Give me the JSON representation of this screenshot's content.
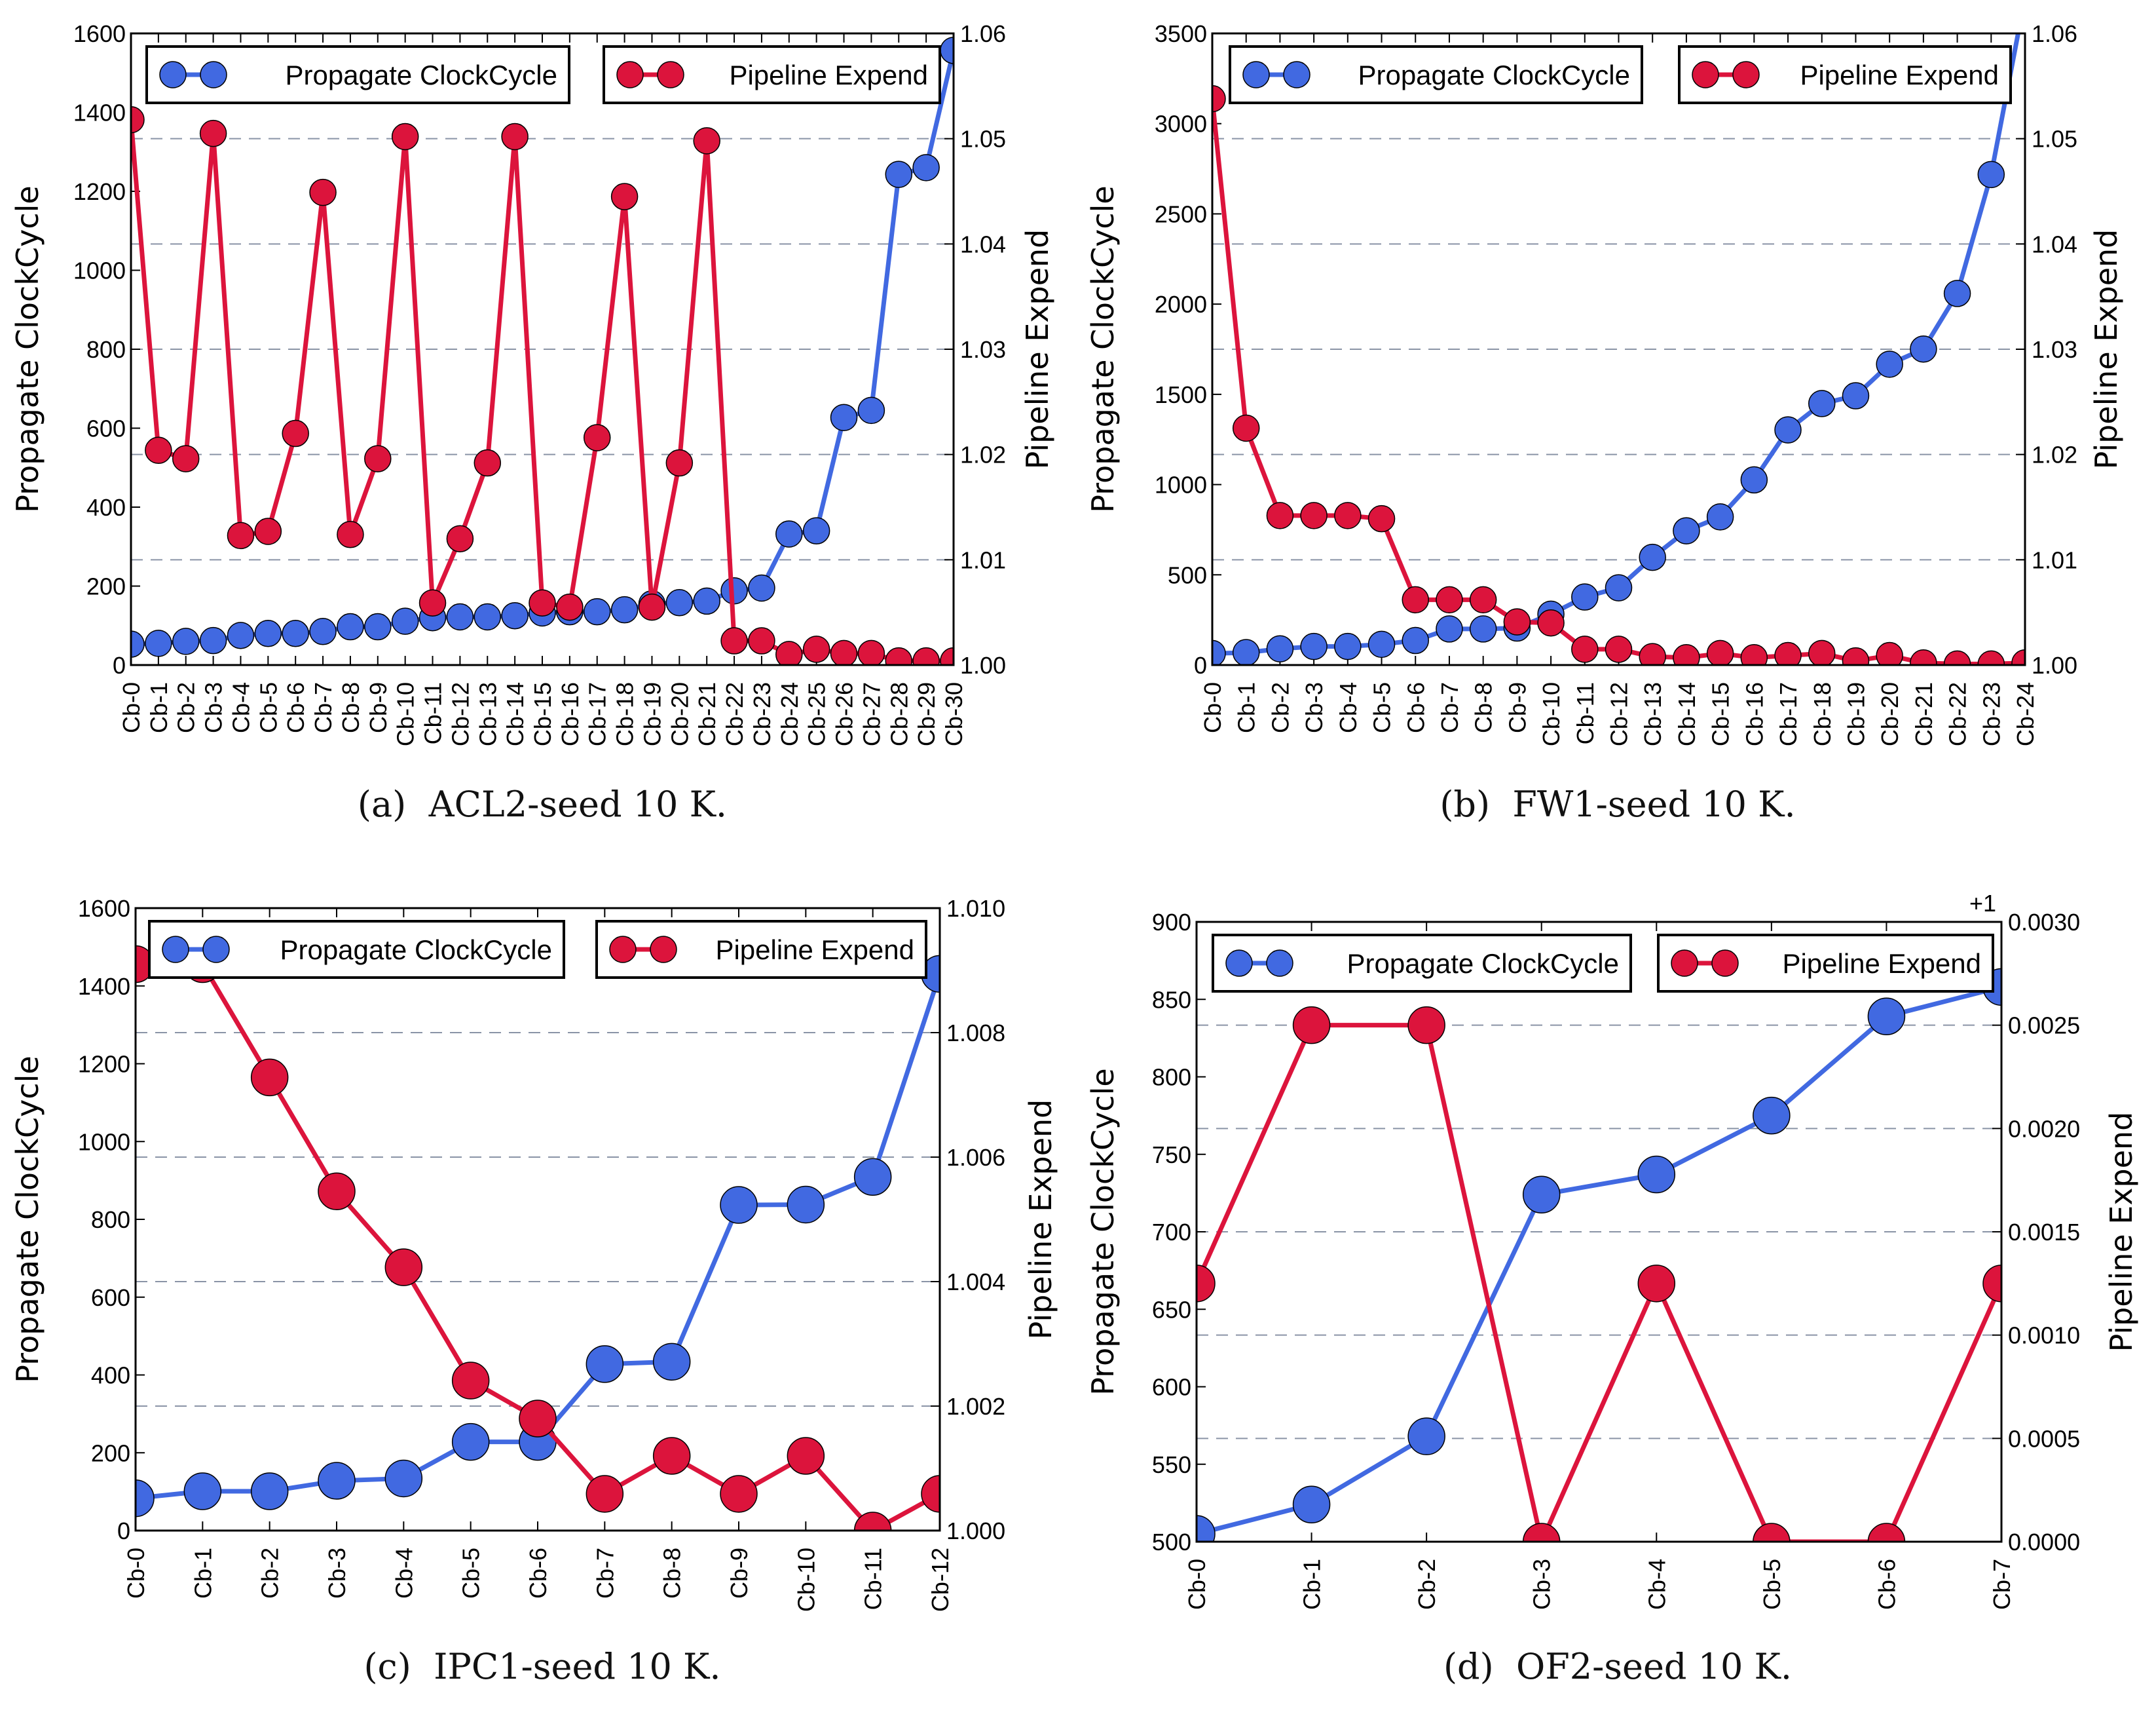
{
  "colors": {
    "propagate": "#4169E1",
    "pipeline": "#DC143C",
    "grid": "#8a94a6"
  },
  "legend": {
    "propagate": "Propagate ClockCycle",
    "pipeline": "Pipeline Expend"
  },
  "chart_data": [
    {
      "type": "line",
      "caption": "(a)  ACL2-seed 10 K.",
      "ylabel": "Propagate ClockCycle",
      "y2label": "Pipeline Expend",
      "categories": [
        "Cb-0",
        "Cb-1",
        "Cb-2",
        "Cb-3",
        "Cb-4",
        "Cb-5",
        "Cb-6",
        "Cb-7",
        "Cb-8",
        "Cb-9",
        "Cb-10",
        "Cb-11",
        "Cb-12",
        "Cb-13",
        "Cb-14",
        "Cb-15",
        "Cb-16",
        "Cb-17",
        "Cb-18",
        "Cb-19",
        "Cb-20",
        "Cb-21",
        "Cb-22",
        "Cb-23",
        "Cb-24",
        "Cb-25",
        "Cb-26",
        "Cb-27",
        "Cb-28",
        "Cb-29",
        "Cb-30"
      ],
      "ylim": [
        0,
        1600
      ],
      "yticks": [
        "0",
        "200",
        "400",
        "600",
        "800",
        "1000",
        "1200",
        "1400",
        "1600"
      ],
      "y2lim": [
        1.0,
        1.06
      ],
      "y2ticks": [
        "1.00",
        "1.01",
        "1.02",
        "1.03",
        "1.04",
        "1.05",
        "1.06"
      ],
      "y2_offset_label": "",
      "series": [
        {
          "name": "Propagate ClockCycle",
          "axis": "left",
          "values": [
            53,
            55,
            60,
            62,
            75,
            80,
            80,
            85,
            97,
            97,
            111,
            120,
            122,
            122,
            125,
            132,
            135,
            135,
            140,
            155,
            158,
            162,
            188,
            195,
            332,
            340,
            627,
            645,
            1243,
            1260,
            1557
          ]
        },
        {
          "name": "Pipeline Expend",
          "axis": "right",
          "values": [
            1.0518,
            1.0204,
            1.0196,
            1.0505,
            1.0123,
            1.0127,
            1.022,
            1.0449,
            1.0124,
            1.0196,
            1.0502,
            1.0059,
            1.012,
            1.0192,
            1.0502,
            1.0059,
            1.0055,
            1.0216,
            1.0445,
            1.0055,
            1.0192,
            1.0498,
            1.0023,
            1.0023,
            1.001,
            1.0015,
            1.0011,
            1.0011,
            1.0004,
            1.0004,
            1.0004
          ]
        }
      ],
      "grid": "horizontal dashed at right-axis ticks",
      "legend_placement": "top"
    },
    {
      "type": "line",
      "caption": "(b)  FW1-seed 10 K.",
      "ylabel": "Propagate ClockCycle",
      "y2label": "Pipeline Expend",
      "categories": [
        "Cb-0",
        "Cb-1",
        "Cb-2",
        "Cb-3",
        "Cb-4",
        "Cb-5",
        "Cb-6",
        "Cb-7",
        "Cb-8",
        "Cb-9",
        "Cb-10",
        "Cb-11",
        "Cb-12",
        "Cb-13",
        "Cb-14",
        "Cb-15",
        "Cb-16",
        "Cb-17",
        "Cb-18",
        "Cb-19",
        "Cb-20",
        "Cb-21",
        "Cb-22",
        "Cb-23",
        "Cb-24"
      ],
      "ylim": [
        0,
        3500
      ],
      "yticks": [
        "0",
        "500",
        "1000",
        "1500",
        "2000",
        "2500",
        "3000",
        "3500"
      ],
      "y2lim": [
        1.0,
        1.06
      ],
      "y2ticks": [
        "1.00",
        "1.01",
        "1.02",
        "1.03",
        "1.04",
        "1.05",
        "1.06"
      ],
      "y2_offset_label": "",
      "series": [
        {
          "name": "Propagate ClockCycle",
          "axis": "left",
          "values": [
            64,
            69,
            90,
            103,
            103,
            115,
            136,
            200,
            200,
            205,
            282,
            377,
            428,
            597,
            744,
            821,
            1026,
            1303,
            1449,
            1492,
            1667,
            1751,
            2059,
            2718,
            3700
          ]
        },
        {
          "name": "Pipeline Expend",
          "axis": "right",
          "values": [
            1.0538,
            1.0225,
            1.0142,
            1.0142,
            1.0142,
            1.0139,
            1.0062,
            1.0062,
            1.0062,
            1.0041,
            1.004,
            1.0015,
            1.0015,
            1.0008,
            1.0007,
            1.0011,
            1.0007,
            1.0009,
            1.0011,
            1.0004,
            1.0009,
            1.0002,
            1.0001,
            1.0001,
            1.0002
          ]
        }
      ],
      "grid": "horizontal dashed at right-axis ticks",
      "legend_placement": "top"
    },
    {
      "type": "line",
      "caption": "(c)  IPC1-seed 10 K.",
      "ylabel": "Propagate ClockCycle",
      "y2label": "Pipeline Expend",
      "categories": [
        "Cb-0",
        "Cb-1",
        "Cb-2",
        "Cb-3",
        "Cb-4",
        "Cb-5",
        "Cb-6",
        "Cb-7",
        "Cb-8",
        "Cb-9",
        "Cb-10",
        "Cb-11",
        "Cb-12"
      ],
      "ylim": [
        0,
        1600
      ],
      "yticks": [
        "0",
        "200",
        "400",
        "600",
        "800",
        "1000",
        "1200",
        "1400",
        "1600"
      ],
      "y2lim": [
        1.0,
        1.01
      ],
      "y2ticks": [
        "1.000",
        "1.002",
        "1.004",
        "1.006",
        "1.008",
        "1.010"
      ],
      "y2_offset_label": "",
      "series": [
        {
          "name": "Propagate ClockCycle",
          "axis": "left",
          "values": [
            83,
            101,
            101,
            128,
            134,
            228,
            228,
            428,
            434,
            837,
            838,
            909,
            1431
          ]
        },
        {
          "name": "Pipeline Expend",
          "axis": "right",
          "values": [
            1.0091,
            1.0091,
            1.00728,
            1.00545,
            1.00423,
            1.00241,
            1.0018,
            1.00059,
            1.0012,
            1.00059,
            1.0012,
            1.0,
            1.00059
          ]
        }
      ],
      "grid": "horizontal dashed at right-axis ticks",
      "legend_placement": "top"
    },
    {
      "type": "line",
      "caption": "(d)  OF2-seed 10 K.",
      "ylabel": "Propagate ClockCycle",
      "y2label": "Pipeline Expend",
      "categories": [
        "Cb-0",
        "Cb-1",
        "Cb-2",
        "Cb-3",
        "Cb-4",
        "Cb-5",
        "Cb-6",
        "Cb-7"
      ],
      "ylim": [
        500,
        900
      ],
      "yticks": [
        "500",
        "550",
        "600",
        "650",
        "700",
        "750",
        "800",
        "850",
        "900"
      ],
      "y2lim": [
        1.0,
        1.003
      ],
      "y2ticks": [
        "0.0000",
        "0.0005",
        "0.0010",
        "0.0015",
        "0.0020",
        "0.0025",
        "0.0030"
      ],
      "y2_offset": 1,
      "y2_offset_label": "+1",
      "series": [
        {
          "name": "Propagate ClockCycle",
          "axis": "left",
          "values": [
            505,
            524,
            568,
            724,
            737,
            775,
            839,
            858
          ]
        },
        {
          "name": "Pipeline Expend",
          "axis": "right",
          "values": [
            1.00125,
            1.0025,
            1.0025,
            1.0,
            1.00125,
            1.0,
            1.0,
            1.00125
          ]
        }
      ],
      "grid": "horizontal dashed at right-axis ticks",
      "legend_placement": "top"
    }
  ]
}
